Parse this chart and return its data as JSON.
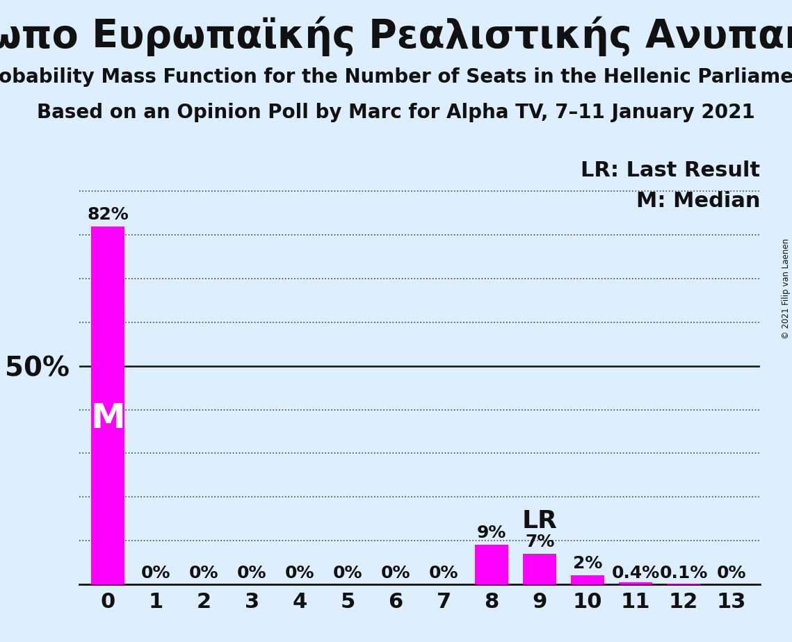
{
  "title": "Μέτωπο Ευρωπαϊκής Ρεαλιστικής Ανυπακοής",
  "subtitle1": "Probability Mass Function for the Number of Seats in the Hellenic Parliament",
  "subtitle2": "Based on an Opinion Poll by Marc for Alpha TV, 7–11 January 2021",
  "copyright": "© 2021 Filip van Laenen",
  "categories": [
    0,
    1,
    2,
    3,
    4,
    5,
    6,
    7,
    8,
    9,
    10,
    11,
    12,
    13
  ],
  "values": [
    0.82,
    0.0,
    0.0,
    0.0,
    0.0,
    0.0,
    0.0,
    0.0,
    0.09,
    0.07,
    0.02,
    0.004,
    0.001,
    0.0
  ],
  "bar_color": "#FF00FF",
  "background_color": "#ddeeff",
  "label_values": [
    "82%",
    "0%",
    "0%",
    "0%",
    "0%",
    "0%",
    "0%",
    "0%",
    "9%",
    "7%",
    "2%",
    "0.4%",
    "0.1%",
    "0%"
  ],
  "median_bar_index": 0,
  "median_label": "M",
  "last_result_index": 9,
  "last_result_label": "LR",
  "ytick_label": "50%",
  "ytick_value": 0.5,
  "y_max": 1.0,
  "ylabel_fontsize": 28,
  "title_fontsize": 40,
  "subtitle_fontsize": 20,
  "bar_label_fontsize": 18,
  "legend_fontsize": 22,
  "axis_label_fontsize": 22,
  "median_inside_fontsize": 36,
  "lr_fontsize": 26,
  "dotted_line_color": "#444444",
  "solid_line_color": "#111111",
  "text_color": "#111111",
  "grid_levels": [
    0.1,
    0.2,
    0.3,
    0.4,
    0.5,
    0.6,
    0.7,
    0.8,
    0.9
  ]
}
